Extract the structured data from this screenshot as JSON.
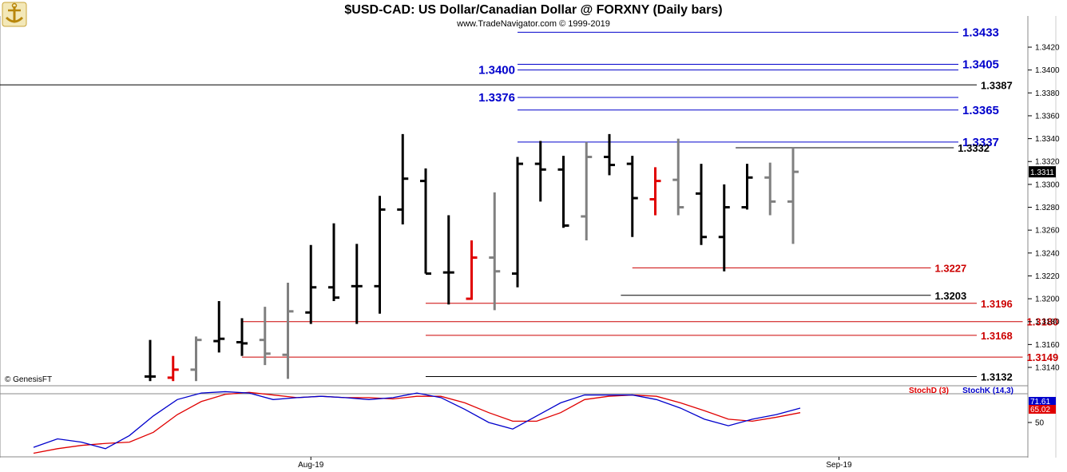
{
  "header": {
    "title": "$USD-CAD:  US Dollar/Canadian Dollar @ FORXNY  (Daily bars)",
    "subtitle": "www.TradeNavigator.com © 1999-2019",
    "credit": "© GenesisFT"
  },
  "colors": {
    "up_bar": "#000000",
    "down_bar": "#808080",
    "alt_bar": "#e00000",
    "blue_level": "#0000cc",
    "red_level": "#cc0000",
    "black_level": "#000000",
    "stoch_d": "#e00000",
    "stoch_k": "#0000cc"
  },
  "chart_data": {
    "type": "ohlc",
    "ylim": [
      1.3128,
      1.3445
    ],
    "y_ticks": [
      "1.3140",
      "1.3160",
      "1.3180",
      "1.3200",
      "1.3220",
      "1.3240",
      "1.3260",
      "1.3280",
      "1.3300",
      "1.3320",
      "1.3340",
      "1.3360",
      "1.3380",
      "1.3400",
      "1.3420"
    ],
    "x_labels": [
      {
        "label": "Aug-19",
        "index": 7
      },
      {
        "label": "Sep-19",
        "index": 30
      }
    ],
    "current_price": "1.3311",
    "bars": [
      {
        "o": 1.3132,
        "h": 1.3164,
        "l": 1.3128,
        "c": 1.3132,
        "color": "up"
      },
      {
        "o": 1.3131,
        "h": 1.315,
        "l": 1.3128,
        "c": 1.3138,
        "color": "alt"
      },
      {
        "o": 1.3138,
        "h": 1.3167,
        "l": 1.3128,
        "c": 1.3164,
        "color": "down"
      },
      {
        "o": 1.3163,
        "h": 1.3198,
        "l": 1.3153,
        "c": 1.3165,
        "color": "up"
      },
      {
        "o": 1.3162,
        "h": 1.3183,
        "l": 1.315,
        "c": 1.3161,
        "color": "up"
      },
      {
        "o": 1.3164,
        "h": 1.3193,
        "l": 1.3142,
        "c": 1.3152,
        "color": "down"
      },
      {
        "o": 1.3151,
        "h": 1.3214,
        "l": 1.313,
        "c": 1.3189,
        "color": "down"
      },
      {
        "o": 1.3188,
        "h": 1.3247,
        "l": 1.3178,
        "c": 1.321,
        "color": "up"
      },
      {
        "o": 1.321,
        "h": 1.3266,
        "l": 1.3198,
        "c": 1.3201,
        "color": "up"
      },
      {
        "o": 1.3211,
        "h": 1.3248,
        "l": 1.3178,
        "c": 1.3211,
        "color": "up"
      },
      {
        "o": 1.3211,
        "h": 1.329,
        "l": 1.3187,
        "c": 1.3278,
        "color": "up"
      },
      {
        "o": 1.3278,
        "h": 1.3344,
        "l": 1.3265,
        "c": 1.3305,
        "color": "up"
      },
      {
        "o": 1.3303,
        "h": 1.3314,
        "l": 1.3222,
        "c": 1.3222,
        "color": "up"
      },
      {
        "o": 1.3223,
        "h": 1.3273,
        "l": 1.3195,
        "c": 1.3223,
        "color": "up"
      },
      {
        "o": 1.32,
        "h": 1.3251,
        "l": 1.3199,
        "c": 1.3236,
        "color": "alt"
      },
      {
        "o": 1.3236,
        "h": 1.3293,
        "l": 1.319,
        "c": 1.3224,
        "color": "down"
      },
      {
        "o": 1.3222,
        "h": 1.3324,
        "l": 1.321,
        "c": 1.3318,
        "color": "up"
      },
      {
        "o": 1.3318,
        "h": 1.3338,
        "l": 1.3285,
        "c": 1.3313,
        "color": "up"
      },
      {
        "o": 1.3313,
        "h": 1.3325,
        "l": 1.3262,
        "c": 1.3264,
        "color": "up"
      },
      {
        "o": 1.3272,
        "h": 1.3337,
        "l": 1.3251,
        "c": 1.3324,
        "color": "down"
      },
      {
        "o": 1.3324,
        "h": 1.3344,
        "l": 1.3308,
        "c": 1.3317,
        "color": "up"
      },
      {
        "o": 1.3318,
        "h": 1.3325,
        "l": 1.3254,
        "c": 1.3288,
        "color": "up"
      },
      {
        "o": 1.3287,
        "h": 1.3315,
        "l": 1.3273,
        "c": 1.3303,
        "color": "alt"
      },
      {
        "o": 1.3304,
        "h": 1.334,
        "l": 1.3273,
        "c": 1.328,
        "color": "down"
      },
      {
        "o": 1.3292,
        "h": 1.3318,
        "l": 1.3247,
        "c": 1.3254,
        "color": "up"
      },
      {
        "o": 1.3254,
        "h": 1.33,
        "l": 1.3224,
        "c": 1.328,
        "color": "up"
      },
      {
        "o": 1.328,
        "h": 1.3318,
        "l": 1.3278,
        "c": 1.3306,
        "color": "up"
      },
      {
        "o": 1.3306,
        "h": 1.3319,
        "l": 1.3273,
        "c": 1.3285,
        "color": "down"
      },
      {
        "o": 1.3285,
        "h": 1.3332,
        "l": 1.3248,
        "c": 1.3311,
        "color": "down"
      }
    ],
    "levels": [
      {
        "value": 1.3433,
        "label": "1.3433",
        "color": "blue",
        "start": 16,
        "label_side": "right",
        "label_size": "large"
      },
      {
        "value": 1.3405,
        "label": "1.3405",
        "color": "blue",
        "start": 16,
        "label_side": "right",
        "label_size": "large"
      },
      {
        "value": 1.34,
        "label": "1.3400",
        "color": "blue",
        "start": 16,
        "label_side": "left",
        "label_size": "large"
      },
      {
        "value": 1.3387,
        "label": "1.3387",
        "color": "black",
        "start": -6,
        "label_side": "right",
        "label_size": "small",
        "end_index": 36
      },
      {
        "value": 1.3376,
        "label": "1.3376",
        "color": "blue",
        "start": 16,
        "label_side": "left",
        "label_size": "large"
      },
      {
        "value": 1.3365,
        "label": "1.3365",
        "color": "blue",
        "start": 16,
        "label_side": "right",
        "label_size": "large"
      },
      {
        "value": 1.3337,
        "label": "1.3337",
        "color": "blue",
        "start": 16,
        "label_side": "right",
        "label_size": "large"
      },
      {
        "value": 1.3332,
        "label": "1.3332",
        "color": "black",
        "start": 25.5,
        "label_side": "right",
        "label_size": "small",
        "end_index": 35
      },
      {
        "value": 1.3227,
        "label": "1.3227",
        "color": "red",
        "start": 21,
        "label_side": "right",
        "label_size": "small",
        "end_index": 34
      },
      {
        "value": 1.3203,
        "label": "1.3203",
        "color": "black",
        "start": 20.5,
        "label_side": "right",
        "label_size": "small",
        "end_index": 34
      },
      {
        "value": 1.3196,
        "label": "1.3196",
        "color": "red",
        "start": 12,
        "label_side": "right",
        "label_size": "small",
        "end_index": 36
      },
      {
        "value": 1.318,
        "label": "1.3180",
        "color": "red",
        "start": 4,
        "label_side": "right",
        "label_size": "small",
        "end_index": 38
      },
      {
        "value": 1.3168,
        "label": "1.3168",
        "color": "red",
        "start": 12,
        "label_side": "right",
        "label_size": "small",
        "end_index": 36
      },
      {
        "value": 1.3149,
        "label": "1.3149",
        "color": "red",
        "start": 4,
        "label_side": "right",
        "label_size": "small",
        "end_index": 38
      },
      {
        "value": 1.3132,
        "label": "1.3132",
        "color": "black",
        "start": 12,
        "label_side": "right",
        "label_size": "small",
        "end_index": 36
      }
    ],
    "stochastic": {
      "stoch_d_label": "StochD (3)",
      "stoch_k_label": "StochK (14,3)",
      "tick": "50",
      "k_value": "71.61",
      "d_value": "65.02",
      "k": [
        12,
        25,
        20,
        10,
        30,
        60,
        85,
        95,
        97,
        95,
        85,
        88,
        90,
        88,
        85,
        88,
        95,
        88,
        70,
        50,
        40,
        60,
        80,
        92,
        92,
        92,
        85,
        72,
        55,
        45,
        55,
        62,
        72
      ],
      "d": [
        3,
        10,
        15,
        18,
        20,
        35,
        62,
        82,
        93,
        96,
        92,
        88,
        90,
        88,
        88,
        86,
        90,
        90,
        80,
        65,
        52,
        52,
        65,
        85,
        90,
        92,
        90,
        80,
        68,
        55,
        52,
        58,
        65
      ]
    }
  }
}
